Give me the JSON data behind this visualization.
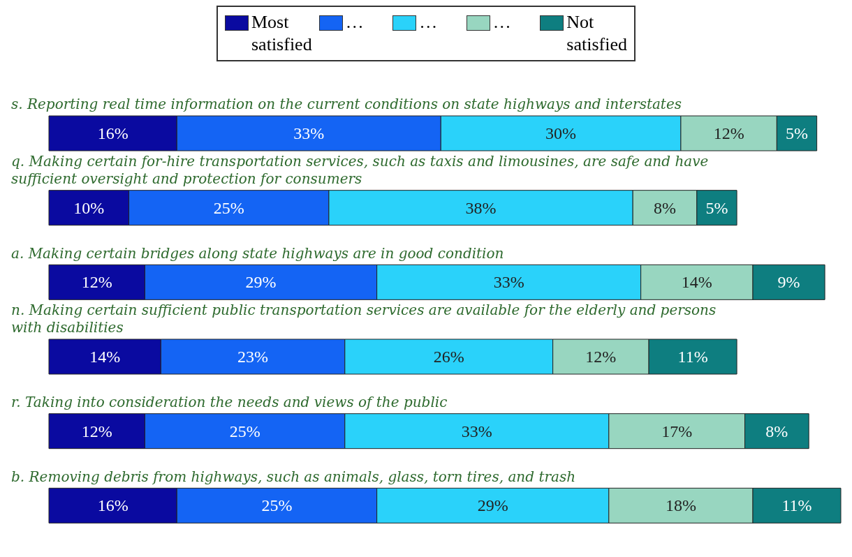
{
  "chart_data": {
    "type": "bar",
    "orientation": "horizontal",
    "stacked": true,
    "legend": "top",
    "categories": [
      "s. Reporting real time information on the current conditions on state highways and interstates",
      "q. Making certain for-hire transportation services, such as taxis and limousines, are safe and have sufficient oversight and protection for consumers",
      "a. Making certain bridges along state highways are in good condition",
      "n. Making certain sufficient public transportation services are available for the elderly and persons with disabilities",
      "r. Taking into consideration the needs and views of the public",
      "b. Removing debris from highways, such as animals, glass, torn tires, and trash"
    ],
    "series": [
      {
        "name": "Most satisfied",
        "color": "#0a0aa0",
        "values": [
          16,
          10,
          12,
          14,
          12,
          16
        ],
        "value_labels": [
          "16%",
          "10%",
          "12%",
          "14%",
          "12%",
          "16%"
        ]
      },
      {
        "name": "…",
        "color": "#1464f4",
        "values": [
          33,
          25,
          29,
          23,
          25,
          25
        ],
        "value_labels": [
          "33%",
          "25%",
          "29%",
          "23%",
          "25%",
          "25%"
        ]
      },
      {
        "name": "…",
        "color": "#2ad2fa",
        "values": [
          30,
          38,
          33,
          26,
          33,
          29
        ],
        "value_labels": [
          "30%",
          "38%",
          "33%",
          "26%",
          "33%",
          "29%"
        ]
      },
      {
        "name": "…",
        "color": "#98d6c0",
        "values": [
          12,
          8,
          14,
          12,
          17,
          18
        ],
        "value_labels": [
          "12%",
          "8%",
          "14%",
          "12%",
          "17%",
          "18%"
        ]
      },
      {
        "name": "Not satisfied",
        "color": "#0e7e80",
        "values": [
          5,
          5,
          9,
          11,
          8,
          11
        ],
        "value_labels": [
          "5%",
          "5%",
          "9%",
          "11%",
          "8%",
          "11%"
        ]
      }
    ]
  }
}
